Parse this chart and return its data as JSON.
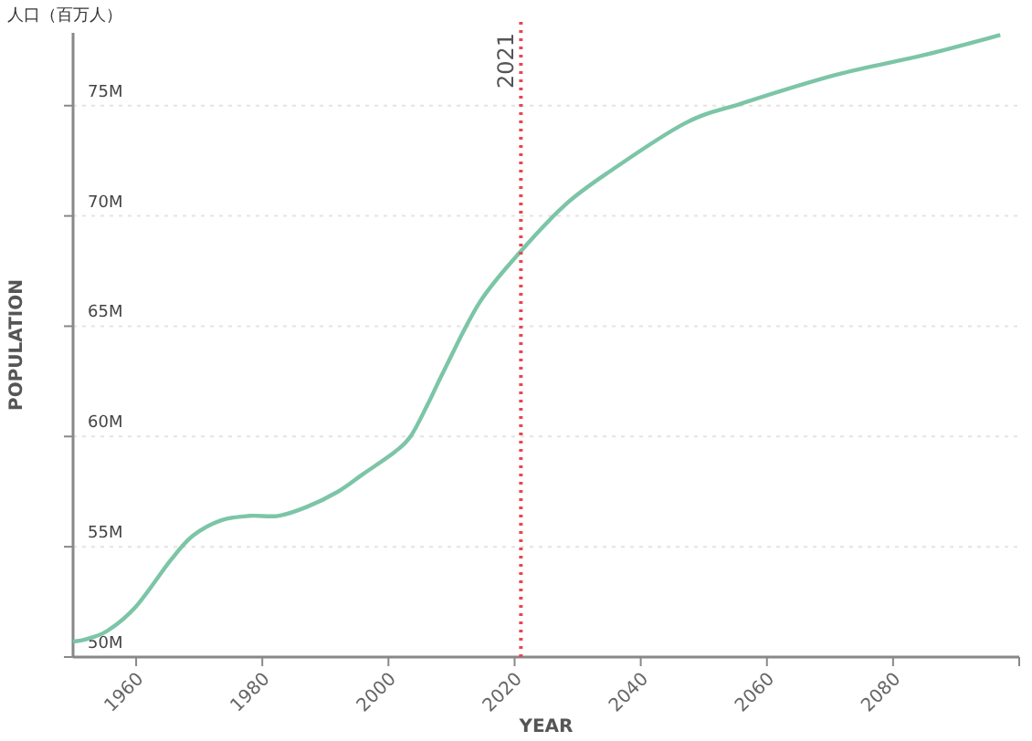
{
  "chart_data": {
    "type": "line",
    "title": "人口（百万人）",
    "xlabel": "YEAR",
    "ylabel": "POPULATION",
    "series": [
      {
        "color": "#7cc5a7",
        "x": [
          1950,
          1952,
          1955.5,
          1960,
          1965.5,
          1969,
          1973.5,
          1978,
          1982.5,
          1987,
          1992,
          1996,
          2001,
          2003.5,
          2006.3,
          2009,
          2014.5,
          2021,
          2028,
          2035,
          2047,
          2056,
          2071,
          2085,
          2097
        ],
        "values": [
          50.7,
          50.8,
          51.2,
          52.3,
          54.4,
          55.5,
          56.2,
          56.4,
          56.4,
          56.8,
          57.5,
          58.3,
          59.3,
          60.0,
          61.5,
          63.1,
          66.1,
          68.4,
          70.5,
          72.0,
          74.2,
          75.1,
          76.4,
          77.3,
          78.2
        ]
      }
    ],
    "xlim": [
      1950,
      2100
    ],
    "ylim": [
      50,
      78.3
    ],
    "xticks": [
      1960,
      1980,
      2000,
      2020,
      2040,
      2060,
      2080,
      {
        "value": 2100,
        "label": null
      }
    ],
    "yticks": [
      {
        "value": 50,
        "label": "50M"
      },
      {
        "value": 55,
        "label": "55M"
      },
      {
        "value": 60,
        "label": "60M"
      },
      {
        "value": 65,
        "label": "65M"
      },
      {
        "value": 70,
        "label": "70M"
      },
      {
        "value": 75,
        "label": "75M"
      }
    ],
    "grid": "y",
    "line_style": "solid",
    "marker": "none",
    "ref_lines": [
      {
        "axis": "x",
        "value": 2021,
        "label": "2021",
        "color": "#e8474f",
        "line_style": "dotted"
      }
    ]
  }
}
